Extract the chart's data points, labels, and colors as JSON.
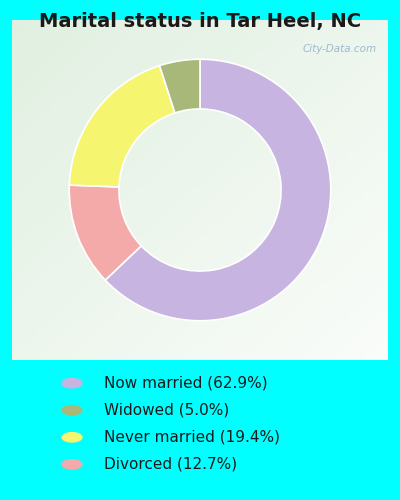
{
  "title": "Marital status in Tar Heel, NC",
  "pie_values": [
    62.9,
    12.7,
    19.4,
    5.0
  ],
  "pie_colors": [
    "#c8b4e0",
    "#f5aaaa",
    "#f5f570",
    "#a8b878"
  ],
  "pie_order_labels": [
    "Now married",
    "Divorced",
    "Never married",
    "Widowed"
  ],
  "legend_labels": [
    "Now married (62.9%)",
    "Widowed (5.0%)",
    "Never married (19.4%)",
    "Divorced (12.7%)"
  ],
  "legend_colors": [
    "#c8b4e0",
    "#a8b878",
    "#f5f570",
    "#f5aaaa"
  ],
  "bg_outer": "#00ffff",
  "bg_chart_color1": "#e8f5e0",
  "bg_chart_color2": "#d0e8d8",
  "watermark": "City-Data.com",
  "title_color": "#1a1a1a",
  "legend_text_color": "#1a1a1a",
  "donut_width": 0.38,
  "title_fontsize": 14,
  "legend_fontsize": 11
}
